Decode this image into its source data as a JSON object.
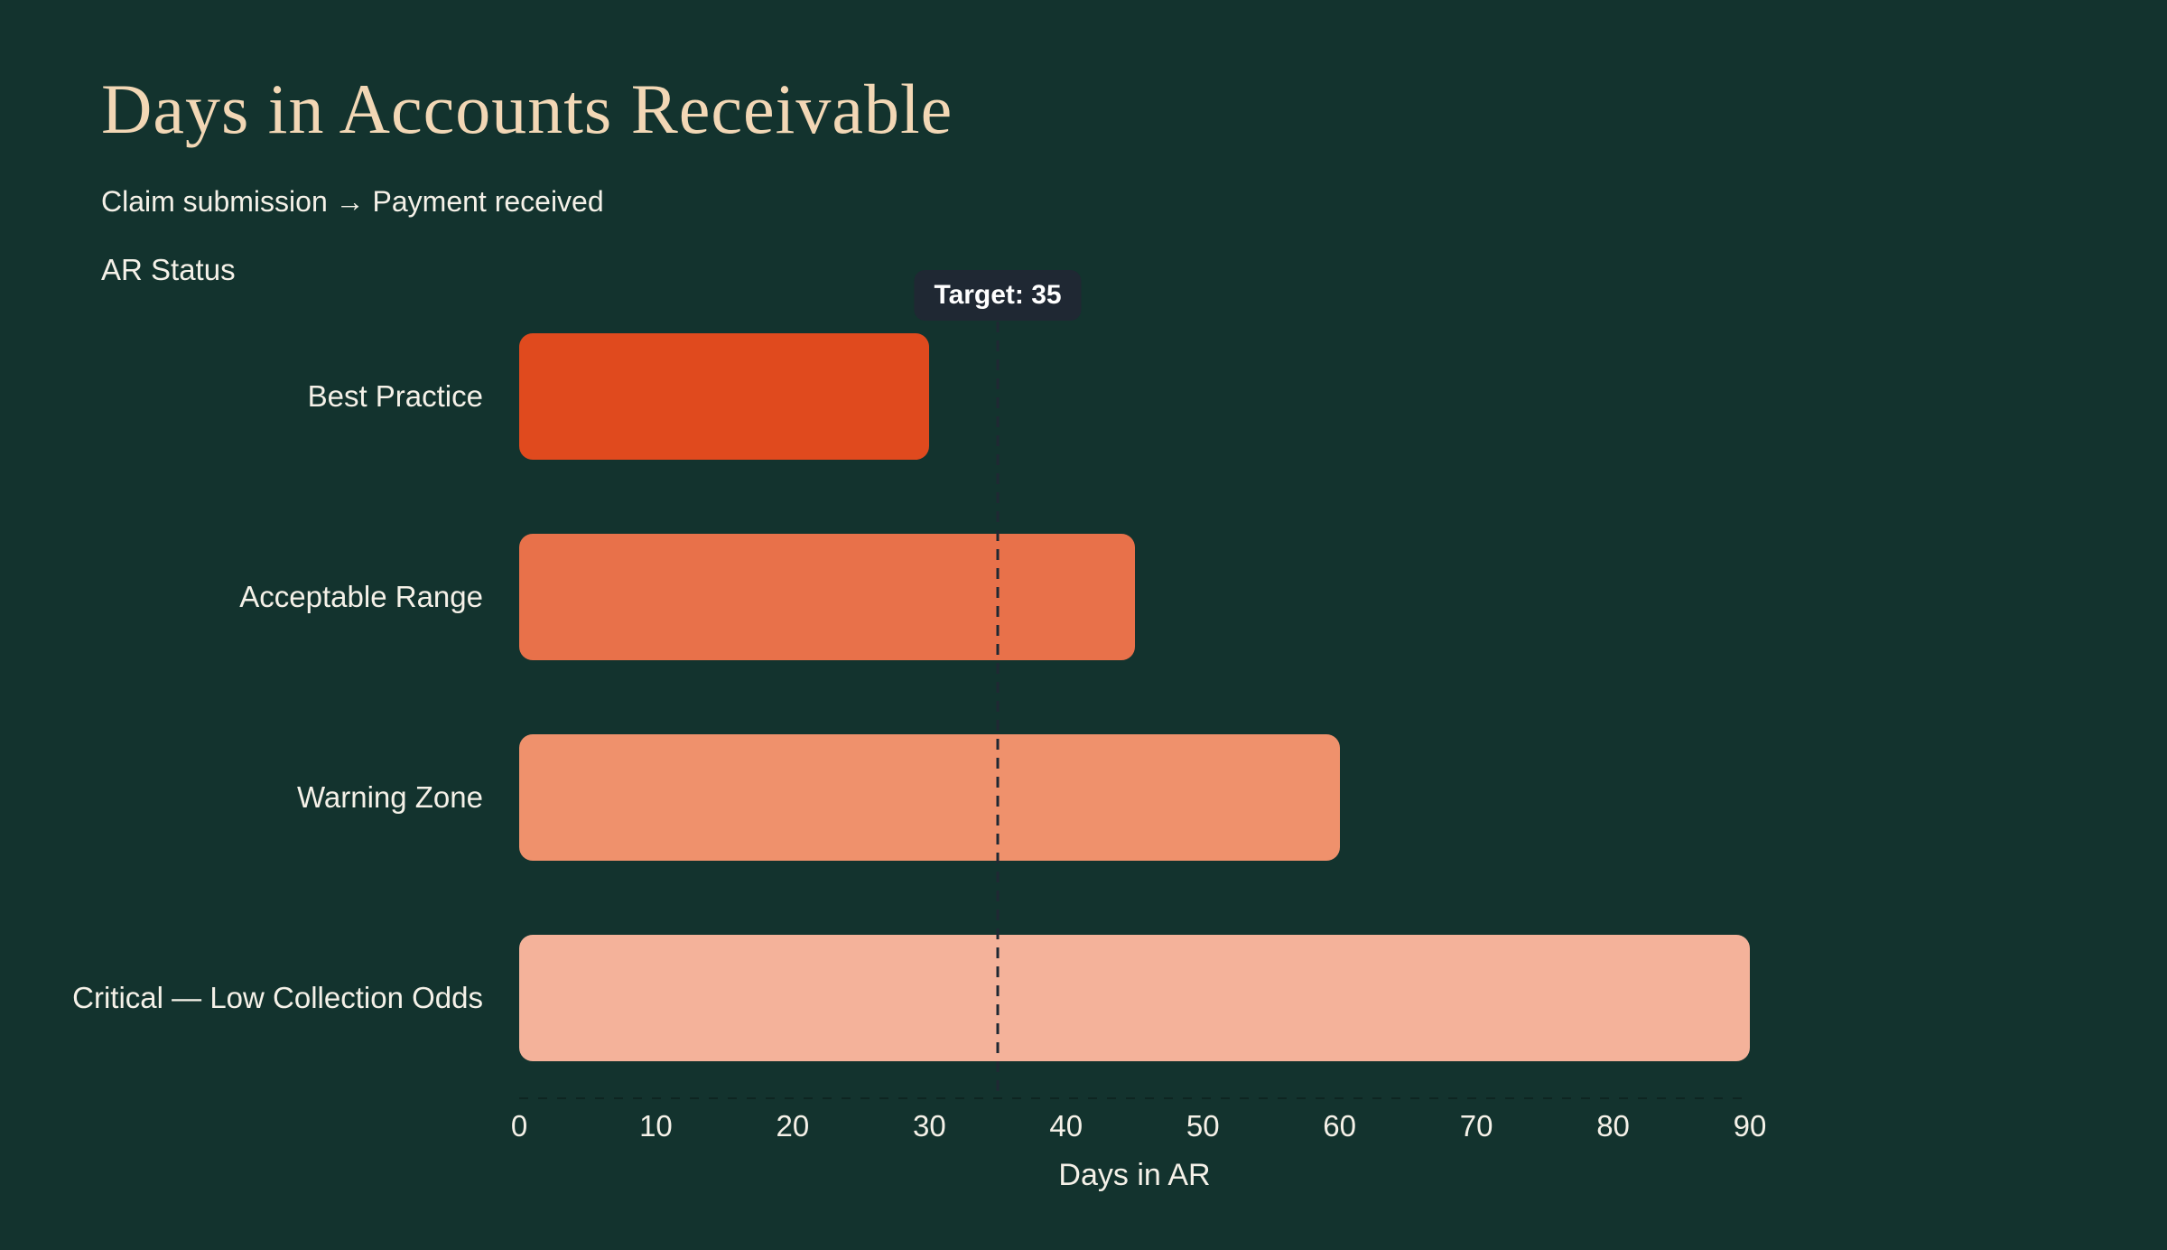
{
  "chart_data": {
    "type": "bar",
    "orientation": "horizontal",
    "title": "Days in Accounts Receivable",
    "subtitle": "Claim submission → Payment received",
    "xlabel": "Days in AR",
    "ylabel": "AR Status",
    "categories": [
      "Best Practice",
      "Acceptable Range",
      "Warning Zone",
      "Critical — Low Collection Odds"
    ],
    "values": [
      30,
      45,
      60,
      90
    ],
    "bar_colors": [
      "#e04a1e",
      "#e8714a",
      "#ef916c",
      "#f4b29a"
    ],
    "xlim": [
      0,
      90
    ],
    "xticks": [
      0,
      10,
      20,
      30,
      40,
      50,
      60,
      70,
      80,
      90
    ],
    "target": {
      "value": 35,
      "label": "Target: 35"
    },
    "grid": false,
    "legend": false
  },
  "colors": {
    "background": "#13332e",
    "title_text": "#f2d7b5",
    "body_text": "#f5f1e8",
    "badge_background": "#1f2833",
    "badge_text": "#ffffff",
    "target_line": "#1f2833"
  }
}
